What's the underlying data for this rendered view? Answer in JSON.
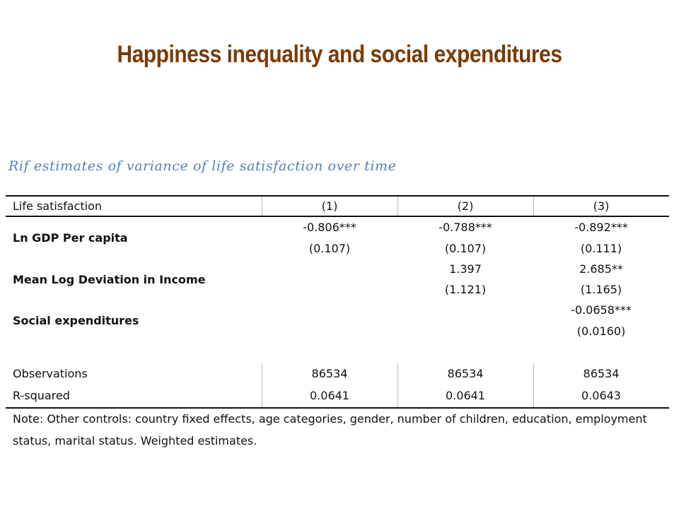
{
  "title": "Happiness inequality and social expenditures",
  "caption": "Rif estimates of variance of life satisfaction over time",
  "table": {
    "header": {
      "label": "Life satisfaction",
      "columns": [
        "(1)",
        "(2)",
        "(3)"
      ]
    },
    "rows": [
      {
        "label": "Ln GDP Per capita",
        "coef": [
          "-0.806***",
          "-0.788***",
          "-0.892***"
        ],
        "se": [
          "(0.107)",
          "(0.107)",
          "(0.111)"
        ]
      },
      {
        "label": "Mean Log Deviation in Income",
        "coef": [
          "",
          "1.397",
          "2.685**"
        ],
        "se": [
          "",
          "(1.121)",
          "(1.165)"
        ]
      },
      {
        "label": "Social expenditures",
        "coef": [
          "",
          "",
          "-0.0658***"
        ],
        "se": [
          "",
          "",
          "(0.0160)"
        ]
      }
    ],
    "stats": [
      {
        "label": "Observations",
        "values": [
          "86534",
          "86534",
          "86534"
        ]
      },
      {
        "label": "R-squared",
        "values": [
          "0.0641",
          "0.0641",
          "0.0643"
        ]
      }
    ],
    "note": "Note: Other controls: country fixed effects, age categories, gender, number of children, education, employment status, marital status. Weighted estimates."
  }
}
